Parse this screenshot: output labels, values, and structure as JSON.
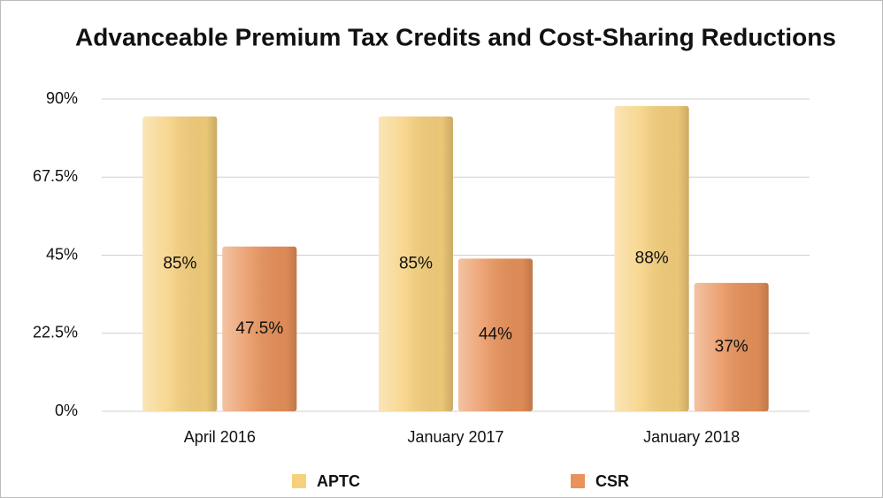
{
  "chart_data": {
    "type": "bar",
    "title": "Advanceable Premium Tax Credits and Cost-Sharing Reductions",
    "categories": [
      "April 2016",
      "January 2017",
      "January 2018"
    ],
    "series": [
      {
        "name": "APTC",
        "color": "#f6d07c",
        "values": [
          85,
          85,
          88
        ],
        "value_labels": [
          "85%",
          "85%",
          "88%"
        ]
      },
      {
        "name": "CSR",
        "color": "#e9925a",
        "values": [
          47.5,
          44,
          37
        ],
        "value_labels": [
          "47.5%",
          "44%",
          "37%"
        ]
      }
    ],
    "ylim": [
      0,
      90
    ],
    "yticks": [
      {
        "value": 0,
        "label": "0%"
      },
      {
        "value": 22.5,
        "label": "22.5%"
      },
      {
        "value": 45,
        "label": "45%"
      },
      {
        "value": 67.5,
        "label": "67.5%"
      },
      {
        "value": 90,
        "label": "90%"
      }
    ],
    "grid": true,
    "legend": "bottom"
  }
}
